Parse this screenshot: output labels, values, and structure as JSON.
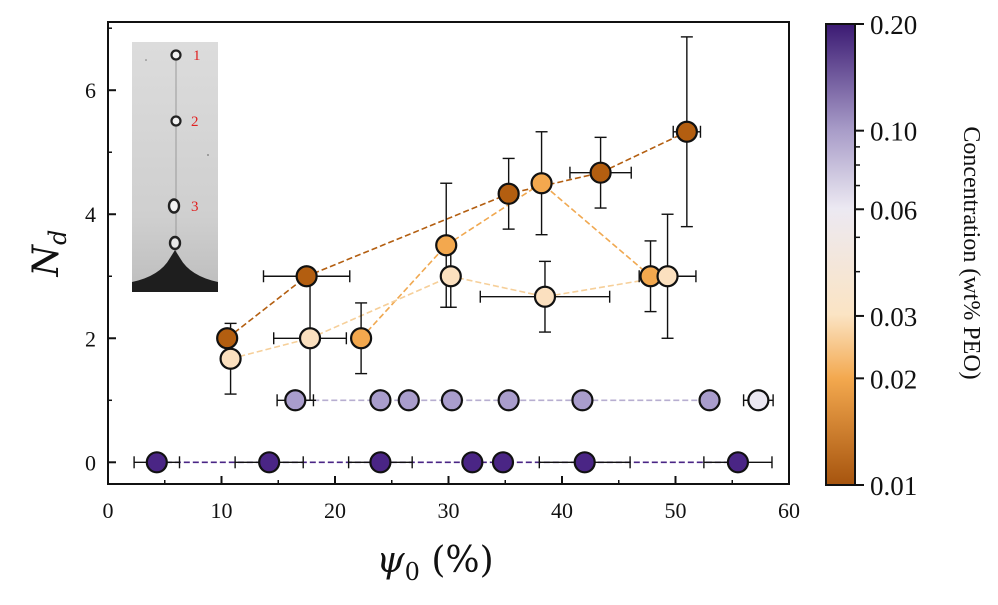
{
  "chart_data": {
    "type": "scatter",
    "xlabel": "ψ0 (%)",
    "ylabel": "Nd",
    "xlim": [
      0,
      60
    ],
    "ylim": [
      -0.35,
      7.1
    ],
    "x_ticks": [
      0,
      10,
      20,
      30,
      40,
      50,
      60
    ],
    "y_ticks": [
      0,
      2,
      4,
      6
    ],
    "colorbar": {
      "label": "Concentration (wt% PEO)",
      "scale": "log",
      "range": [
        0.01,
        0.2
      ],
      "ticks": [
        0.01,
        0.02,
        0.03,
        0.06,
        0.1,
        0.2
      ],
      "tick_labels": [
        "0.01",
        "0.02",
        "0.03",
        "0.06",
        "0.10",
        "0.20"
      ],
      "colors": [
        "#a6540e",
        "#f3a84e",
        "#fbe4c4",
        "#ece9f2",
        "#a89cc8",
        "#3b1a73"
      ]
    },
    "series": [
      {
        "name": "0.01 wt% PEO",
        "concentration": 0.01,
        "color": "#b35e10",
        "points": [
          {
            "x": 10.5,
            "y": 2.0,
            "xerr": 0,
            "yerr": 0
          },
          {
            "x": 17.5,
            "y": 3.0,
            "xerr": 3.8,
            "yerr": 0
          },
          {
            "x": 35.3,
            "y": 4.33,
            "xerr": 0,
            "yerr": 0.57
          },
          {
            "x": 43.4,
            "y": 4.67,
            "xerr": 2.7,
            "yerr": 0.57
          },
          {
            "x": 51.0,
            "y": 5.33,
            "xerr": 1.2,
            "yerr": 1.53
          }
        ]
      },
      {
        "name": "0.02 wt% PEO",
        "concentration": 0.02,
        "color": "#f3a84e",
        "points": [
          {
            "x": 22.3,
            "y": 2.0,
            "xerr": 0,
            "yerr": 0.57
          },
          {
            "x": 29.8,
            "y": 3.5,
            "xerr": 0,
            "yerr": 1.0
          },
          {
            "x": 38.2,
            "y": 4.5,
            "xerr": 0,
            "yerr": 0.83
          },
          {
            "x": 47.8,
            "y": 3.0,
            "xerr": 0,
            "yerr": 0.57
          }
        ]
      },
      {
        "name": "0.03 wt% PEO",
        "concentration": 0.03,
        "color": "#fbe0bf",
        "points": [
          {
            "x": 10.8,
            "y": 1.67,
            "xerr": 0,
            "yerr": 0.57
          },
          {
            "x": 17.8,
            "y": 2.0,
            "xerr": 3.2,
            "yerr": 1.0
          },
          {
            "x": 30.2,
            "y": 3.0,
            "xerr": 0,
            "yerr": 0.5
          },
          {
            "x": 38.5,
            "y": 2.67,
            "xerr": 5.7,
            "yerr": 0.57
          },
          {
            "x": 49.3,
            "y": 3.0,
            "xerr": 2.5,
            "yerr": 1.0
          }
        ]
      },
      {
        "name": "0.10 wt% PEO",
        "concentration": 0.1,
        "color": "#a99dcc",
        "points": [
          {
            "x": 16.5,
            "y": 1.0,
            "xerr": 1.6,
            "yerr": 0
          },
          {
            "x": 24.0,
            "y": 1.0,
            "xerr": 0,
            "yerr": 0
          },
          {
            "x": 26.5,
            "y": 1.0,
            "xerr": 0,
            "yerr": 0
          },
          {
            "x": 30.3,
            "y": 1.0,
            "xerr": 0,
            "yerr": 0
          },
          {
            "x": 35.3,
            "y": 1.0,
            "xerr": 0,
            "yerr": 0
          },
          {
            "x": 41.8,
            "y": 1.0,
            "xerr": 0,
            "yerr": 0
          },
          {
            "x": 53.0,
            "y": 1.0,
            "xerr": 0,
            "yerr": 0
          }
        ]
      },
      {
        "name": "0.06 wt% PEO",
        "concentration": 0.06,
        "color": "#ebe8f2",
        "points": [
          {
            "x": 57.3,
            "y": 1.0,
            "xerr": 1.3,
            "yerr": 0
          }
        ]
      },
      {
        "name": "0.20 wt% PEO",
        "concentration": 0.2,
        "color": "#4a2585",
        "points": [
          {
            "x": 4.3,
            "y": 0.0,
            "xerr": 2.0,
            "yerr": 0
          },
          {
            "x": 14.2,
            "y": 0.0,
            "xerr": 3.0,
            "yerr": 0
          },
          {
            "x": 24.0,
            "y": 0.0,
            "xerr": 2.8,
            "yerr": 0
          },
          {
            "x": 32.1,
            "y": 0.0,
            "xerr": 0,
            "yerr": 0
          },
          {
            "x": 34.8,
            "y": 0.0,
            "xerr": 0,
            "yerr": 0
          },
          {
            "x": 42.0,
            "y": 0.0,
            "xerr": 4.0,
            "yerr": 0
          },
          {
            "x": 55.5,
            "y": 0.0,
            "xerr": 3.0,
            "yerr": 0
          }
        ]
      }
    ],
    "inset": {
      "description_type": "photo",
      "labels": [
        "1",
        "2",
        "3"
      ]
    }
  }
}
